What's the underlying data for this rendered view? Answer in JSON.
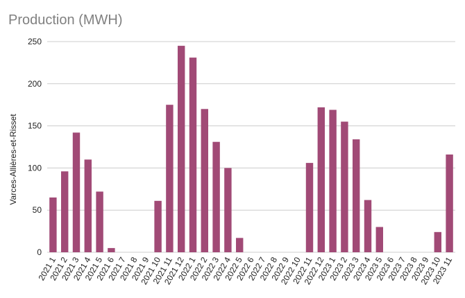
{
  "chart_data": {
    "type": "bar",
    "title": "Production (MWH)",
    "ylabel": "Varces-Allières-et-Risset",
    "xlabel": "",
    "ylim": [
      0,
      250
    ],
    "yticks": [
      0,
      50,
      100,
      150,
      200,
      250
    ],
    "grid": true,
    "bar_color": "#a14a76",
    "categories": [
      "2021 1",
      "2021 2",
      "2021 3",
      "2021 4",
      "2021 5",
      "2021 6",
      "2021 7",
      "2021 8",
      "2021 9",
      "2021 10",
      "2021 11",
      "2021 12",
      "2022 1",
      "2022 2",
      "2022 3",
      "2022 4",
      "2022 5",
      "2022 6",
      "2022 7",
      "2022 8",
      "2022 9",
      "2022 10",
      "2022 11",
      "2022 12",
      "2023 1",
      "2023 2",
      "2023 3",
      "2023 4",
      "2023 5",
      "2023 6",
      "2023 7",
      "2023 8",
      "2023 9",
      "2023 10",
      "2023 11"
    ],
    "values": [
      65,
      96,
      142,
      110,
      72,
      5,
      0,
      0,
      0,
      61,
      175,
      245,
      231,
      170,
      131,
      100,
      17,
      0,
      0,
      0,
      0,
      0,
      106,
      172,
      169,
      155,
      134,
      62,
      30,
      0,
      0,
      0,
      0,
      24,
      116
    ]
  }
}
